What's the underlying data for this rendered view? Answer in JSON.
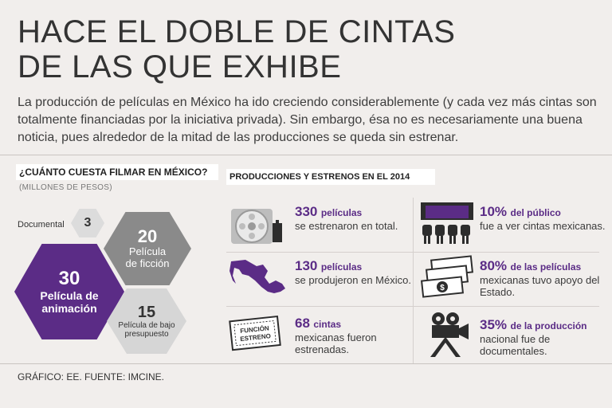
{
  "title": {
    "line1": "HACE EL DOBLE DE CINTAS",
    "line2": "DE LAS QUE EXHIBE"
  },
  "intro": "La producción de películas en México ha ido creciendo considerablemente (y cada vez más cintas son totalmente financiadas por la iniciativa privada). Sin embargo, ésa no es necesariamente una buena noticia, pues alrededor  de la mitad de las producciones se queda sin estrenar.",
  "left": {
    "header": "¿Cuánto cuesta filmar en México?",
    "subheader": "(MILLONES DE PESOS)",
    "documental": {
      "label": "Documental",
      "value": "3"
    },
    "ficcion": {
      "value": "20",
      "label_line1": "Película",
      "label_line2": "de ficción"
    },
    "animacion": {
      "value": "30",
      "label_line1": "Película de",
      "label_line2": "animación"
    },
    "bajo_presupuesto": {
      "value": "15",
      "label_line1": "Película de bajo",
      "label_line2": "presupuesto"
    }
  },
  "right": {
    "header": "Producciones y estrenos en el 2014",
    "stats": [
      {
        "num": "330",
        "unit": "películas",
        "text": "se estrenaron en total.",
        "icon": "film-reel-icon"
      },
      {
        "num": "130",
        "unit": "películas",
        "text": "se produjeron en México.",
        "icon": "mexico-map-icon"
      },
      {
        "num": "68",
        "unit": "cintas",
        "text": "mexicanas fueron estrenadas.",
        "icon": "ticket-icon"
      },
      {
        "num": "10%",
        "unit": "del público",
        "text": "fue a ver cintas mexicanas.",
        "icon": "cinema-seats-icon"
      },
      {
        "num": "80%",
        "unit": "de las películas",
        "text": "mexicanas tuvo apoyo del Estado.",
        "icon": "money-bills-icon"
      },
      {
        "num": "35%",
        "unit": "de la producción",
        "text": "nacional fue de documentales.",
        "icon": "film-camera-icon"
      }
    ],
    "ticket_text": {
      "line1": "FUNCIÓN",
      "line2": "ESTRENO"
    }
  },
  "footer": "GRÁFICO: EE. FUENTE: IMCINE.",
  "colors": {
    "purple": "#5b2c86",
    "gray_hex": "#8a8a8a",
    "light_hex": "#d6d6d6",
    "background": "#f1eeec"
  }
}
